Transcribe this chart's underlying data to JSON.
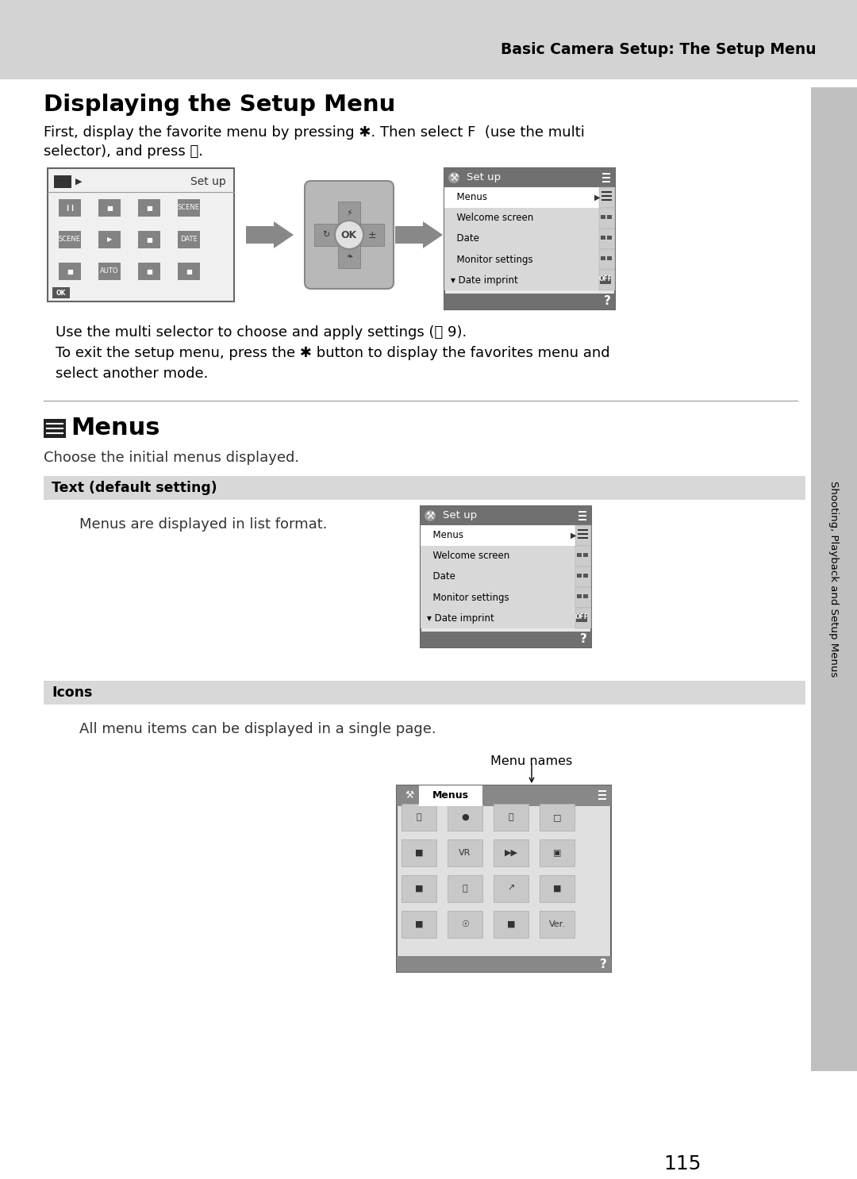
{
  "page_bg": "#ffffff",
  "header_bg": "#d3d3d3",
  "header_text": "Basic Camera Setup: The Setup Menu",
  "section1_title": "Displaying the Setup Menu",
  "body1_line1": "First, display the favorite menu by pressing ✱. Then select F  (use the multi",
  "body1_line2": "selector), and press ⒪.",
  "body2_line1": "Use the multi selector to choose and apply settings (Ⓒ 9).",
  "body2_line2": "To exit the setup menu, press the ✱ button to display the favorites menu and",
  "body2_line3": "select another mode.",
  "section2_title": "Menus",
  "section2_subtitle": "Choose the initial menus displayed.",
  "sub1_label": "Text (default setting)",
  "sub1_body": "Menus are displayed in list format.",
  "sub2_label": "Icons",
  "sub2_body": "All menu items can be displayed in a single page.",
  "menu_names_label": "Menu names",
  "page_number": "115",
  "sidebar_text": "Shooting, Playback and Setup Menus",
  "menu_items": [
    "Menus",
    "Welcome screen",
    "Date",
    "Monitor settings",
    "Date imprint"
  ],
  "menu_header_color": "#707070",
  "menu_selected_bg": "#ffffff",
  "menu_normal_bg": "#d8d8d8",
  "menu_footer_color": "#707070",
  "screen_border": "#666666",
  "screen_bg": "#e8e8e8",
  "arrow_color": "#888888",
  "dpad_color": "#aaaaaa",
  "sub_bar_color": "#d8d8d8",
  "sidebar_color": "#c0c0c0"
}
